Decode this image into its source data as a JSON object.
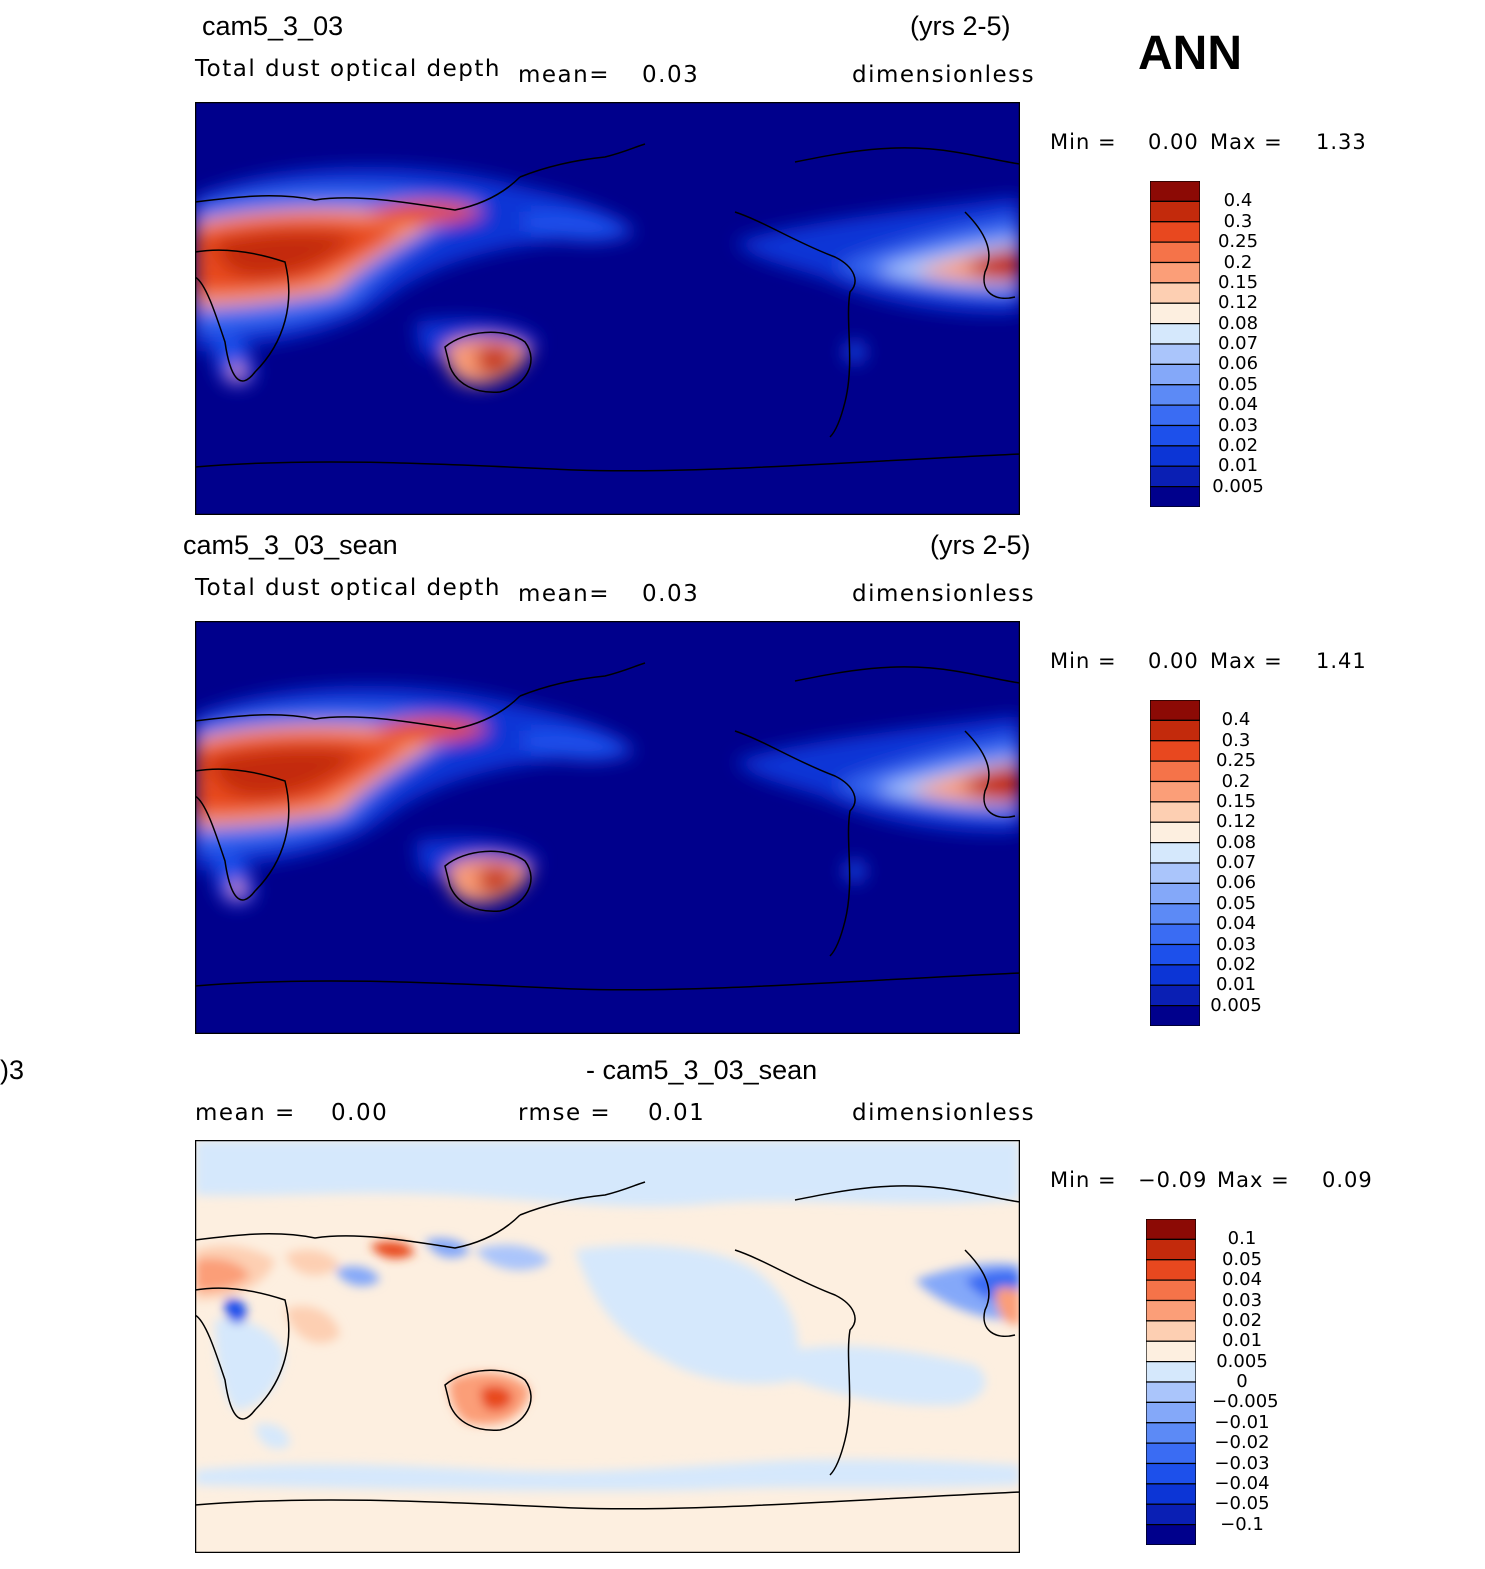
{
  "header": {
    "season": "ANN"
  },
  "panels": [
    {
      "case": "cam5_3_03",
      "years": "(yrs 2-5)",
      "variable": "Total dust optical depth",
      "mean_label": "mean=",
      "mean_value": "0.03",
      "units": "dimensionless",
      "min_label": "Min =",
      "min_value": "0.00",
      "max_label": "Max =",
      "max_value": "1.33",
      "colorbar_labels": [
        "0.4",
        "0.3",
        "0.25",
        "0.2",
        "0.15",
        "0.12",
        "0.08",
        "0.07",
        "0.06",
        "0.05",
        "0.04",
        "0.03",
        "0.02",
        "0.01",
        "0.005"
      ]
    },
    {
      "case": "cam5_3_03_sean",
      "years": "(yrs 2-5)",
      "variable": "Total dust optical depth",
      "mean_label": "mean=",
      "mean_value": "0.03",
      "units": "dimensionless",
      "min_label": "Min =",
      "min_value": "0.00",
      "max_label": "Max =",
      "max_value": "1.41",
      "colorbar_labels": [
        "0.4",
        "0.3",
        "0.25",
        "0.2",
        "0.15",
        "0.12",
        "0.08",
        "0.07",
        "0.06",
        "0.05",
        "0.04",
        "0.03",
        "0.02",
        "0.01",
        "0.005"
      ]
    },
    {
      "case_left": ")3",
      "case": "- cam5_3_03_sean",
      "mean_label": "mean =",
      "mean_value": "0.00",
      "rmse_label": "rmse =",
      "rmse_value": "0.01",
      "units": "dimensionless",
      "min_label": "Min =",
      "min_value": "−0.09",
      "max_label": "Max =",
      "max_value": "0.09",
      "colorbar_labels": [
        "0.1",
        "0.05",
        "0.04",
        "0.03",
        "0.02",
        "0.01",
        "0.005",
        "0",
        "−0.005",
        "−0.01",
        "−0.02",
        "−0.03",
        "−0.04",
        "−0.05",
        "−0.1"
      ]
    }
  ],
  "chart_data": [
    {
      "type": "heatmap",
      "title": "cam5_3_03",
      "subtitle": "Total dust optical depth",
      "field": "global map, lon 0-360, lat -90 to 90",
      "units": "dimensionless",
      "mean": 0.03,
      "min": 0.0,
      "max": 1.33,
      "levels": [
        0.005,
        0.01,
        0.02,
        0.03,
        0.04,
        0.05,
        0.06,
        0.07,
        0.08,
        0.12,
        0.15,
        0.2,
        0.25,
        0.3,
        0.4
      ],
      "colors": [
        "#00008c",
        "#0a1fb4",
        "#0c35d6",
        "#1d50eb",
        "#3a6cf3",
        "#5c8af6",
        "#84a8f9",
        "#aac5fb",
        "#d5e8fc",
        "#fdefe0",
        "#fdcfb2",
        "#fb9e78",
        "#f57349",
        "#e8481f",
        "#c32a0c",
        "#8c0a05"
      ]
    },
    {
      "type": "heatmap",
      "title": "cam5_3_03_sean",
      "subtitle": "Total dust optical depth",
      "field": "global map, lon 0-360, lat -90 to 90",
      "units": "dimensionless",
      "mean": 0.03,
      "min": 0.0,
      "max": 1.41,
      "levels": [
        0.005,
        0.01,
        0.02,
        0.03,
        0.04,
        0.05,
        0.06,
        0.07,
        0.08,
        0.12,
        0.15,
        0.2,
        0.25,
        0.3,
        0.4
      ],
      "colors": [
        "#00008c",
        "#0a1fb4",
        "#0c35d6",
        "#1d50eb",
        "#3a6cf3",
        "#5c8af6",
        "#84a8f9",
        "#aac5fb",
        "#d5e8fc",
        "#fdefe0",
        "#fdcfb2",
        "#fb9e78",
        "#f57349",
        "#e8481f",
        "#c32a0c",
        "#8c0a05"
      ]
    },
    {
      "type": "heatmap",
      "title": "- cam5_3_03_sean",
      "field": "global difference map, lon 0-360, lat -90 to 90",
      "units": "dimensionless",
      "mean": 0.0,
      "rmse": 0.01,
      "min": -0.09,
      "max": 0.09,
      "levels": [
        -0.1,
        -0.05,
        -0.04,
        -0.03,
        -0.02,
        -0.01,
        -0.005,
        0,
        0.005,
        0.01,
        0.02,
        0.03,
        0.04,
        0.05,
        0.1
      ],
      "colors": [
        "#00008c",
        "#0a1fb4",
        "#0c35d6",
        "#1d50eb",
        "#3a6cf3",
        "#5c8af6",
        "#84a8f9",
        "#aac5fb",
        "#d5e8fc",
        "#fdefe0",
        "#fdcfb2",
        "#fb9e78",
        "#f57349",
        "#e8481f",
        "#c32a0c",
        "#8c0a05"
      ]
    }
  ]
}
